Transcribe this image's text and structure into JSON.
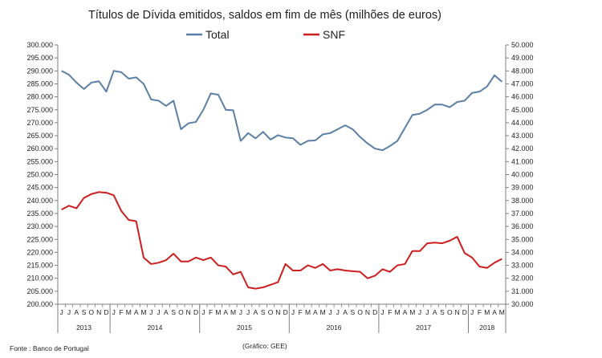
{
  "chart_data": {
    "type": "line",
    "title": "Títulos de Dívida emitidos, saldos em fim de mês  (milhões de euros)",
    "legend": [
      {
        "name": "Total",
        "color": "#5b7fa6"
      },
      {
        "name": "SNF",
        "color": "#cc1f1f"
      }
    ],
    "y_left": {
      "min": 200000,
      "max": 300000,
      "step": 5000,
      "ticks": [
        "200.000",
        "205.000",
        "210.000",
        "215.000",
        "220.000",
        "225.000",
        "230.000",
        "235.000",
        "240.000",
        "245.000",
        "250.000",
        "255.000",
        "260.000",
        "265.000",
        "270.000",
        "275.000",
        "280.000",
        "285.000",
        "290.000",
        "295.000",
        "300.000"
      ]
    },
    "y_right": {
      "min": 30000,
      "max": 50000,
      "step": 1000,
      "ticks": [
        "30.000",
        "31.000",
        "32.000",
        "33.000",
        "34.000",
        "35.000",
        "36.000",
        "37.000",
        "38.000",
        "39.000",
        "40.000",
        "41.000",
        "42.000",
        "43.000",
        "44.000",
        "45.000",
        "46.000",
        "47.000",
        "48.000",
        "49.000",
        "50.000"
      ]
    },
    "months": [
      "J",
      "J",
      "A",
      "S",
      "O",
      "N",
      "D",
      "J",
      "F",
      "M",
      "A",
      "M",
      "J",
      "J",
      "A",
      "S",
      "O",
      "N",
      "D",
      "J",
      "F",
      "M",
      "A",
      "M",
      "J",
      "J",
      "A",
      "S",
      "O",
      "N",
      "D",
      "J",
      "F",
      "M",
      "A",
      "M",
      "J",
      "J",
      "A",
      "S",
      "O",
      "N",
      "D",
      "J",
      "F",
      "M",
      "A",
      "M",
      "J",
      "J",
      "A",
      "S",
      "O",
      "N",
      "D",
      "J",
      "F",
      "M",
      "A",
      "M"
    ],
    "years": [
      {
        "label": "2013",
        "months": 7
      },
      {
        "label": "2014",
        "months": 12
      },
      {
        "label": "2015",
        "months": 12
      },
      {
        "label": "2016",
        "months": 12
      },
      {
        "label": "2017",
        "months": 12
      },
      {
        "label": "2018",
        "months": 5
      }
    ],
    "series": [
      {
        "name": "Total",
        "axis": "left",
        "color": "#5b7fa6",
        "values": [
          290000,
          288500,
          285500,
          283000,
          285500,
          286000,
          282000,
          290000,
          289500,
          287000,
          287500,
          285000,
          279000,
          278500,
          276500,
          278500,
          267500,
          269800,
          270300,
          275000,
          281300,
          280800,
          275000,
          274800,
          263000,
          266000,
          264000,
          266500,
          263500,
          265200,
          264300,
          264000,
          261500,
          263000,
          263200,
          265500,
          266000,
          267500,
          269000,
          267500,
          264500,
          262000,
          260000,
          259400,
          261000,
          263000,
          268000,
          273000,
          273500,
          275000,
          277000,
          277000,
          276000,
          278000,
          278500,
          281500,
          282000,
          284000,
          288300,
          285800
        ]
      },
      {
        "name": "SNF",
        "axis": "right",
        "color": "#cc1f1f",
        "values": [
          37300,
          37600,
          37400,
          38200,
          38500,
          38650,
          38600,
          38400,
          37200,
          36500,
          36400,
          33600,
          33100,
          33200,
          33400,
          33900,
          33300,
          33300,
          33600,
          33400,
          33600,
          33000,
          32900,
          32300,
          32500,
          31300,
          31200,
          31300,
          31500,
          31700,
          33100,
          32600,
          32600,
          33000,
          32800,
          33100,
          32600,
          32700,
          32600,
          32550,
          32500,
          32000,
          32200,
          32700,
          32500,
          33000,
          33100,
          34100,
          34100,
          34700,
          34750,
          34700,
          34900,
          35200,
          33950,
          33600,
          32900,
          32800,
          33200,
          33500
        ]
      }
    ]
  },
  "footer": {
    "source": "Fonte : Banco de Portugal",
    "credit": "(Gráfico: GEE)"
  }
}
